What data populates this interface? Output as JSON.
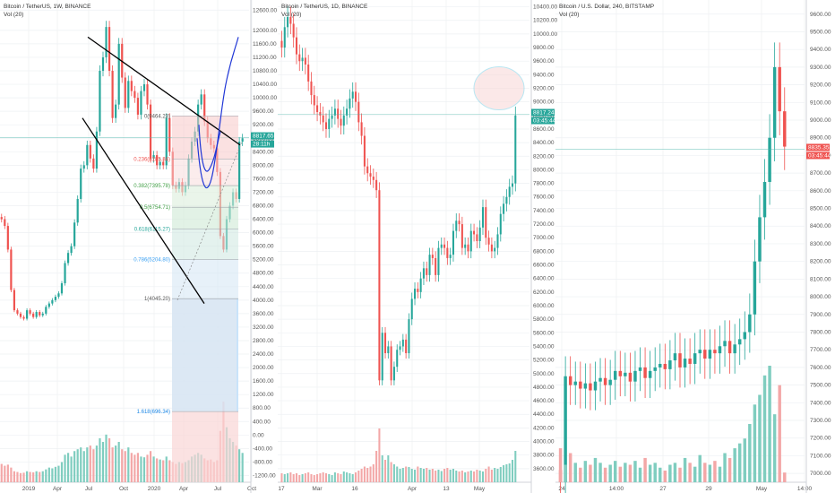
{
  "colors": {
    "up": "#26a69a",
    "down": "#ef5350",
    "upvol": "#7fcdbf",
    "downvol": "#f3a7a7",
    "grid": "#eef0f3",
    "axis": "#d0d3da"
  },
  "panels": [
    {
      "title": "Bitcoin / TetherUS, 1W, BINANCE",
      "vol_label": "Vol (20)",
      "y_ticks": [
        "12600.00",
        "12000.00",
        "11600.00",
        "11200.00",
        "10800.00",
        "10400.00",
        "10000.00",
        "9600.00",
        "9200.00",
        "8800.00",
        "8400.00",
        "8000.00",
        "7600.00",
        "7200.00",
        "6800.00",
        "6400.00",
        "6000.00",
        "5600.00",
        "5200.00",
        "4800.00",
        "4400.00",
        "4000.00",
        "3600.00",
        "3200.00",
        "2800.00",
        "2400.00",
        "2000.00",
        "1600.00",
        "1200.00",
        "800.00",
        "400.00",
        "0.00",
        "-400.00",
        "-800.00",
        "-1200.00"
      ],
      "x_ticks": [
        "2019",
        "Apr",
        "Jul",
        "Oct",
        "2020",
        "Apr",
        "Jul",
        "Oct"
      ],
      "price_tags": [
        "8817.65",
        "28:11h"
      ],
      "fib_labels": [
        "0(9464.23)",
        "0.236(8185.34)",
        "0.382(7395.78)",
        "0.5(6754.71)",
        "0.618(6115.27)",
        "0.786(5204.80)",
        "1(4045.20)",
        "1.618(696.34)"
      ]
    },
    {
      "title": "Bitcoin / TetherUS, 1D, BINANCE",
      "vol_label": "Vol (20)",
      "y_ticks": [
        "10400.00",
        "10200.00",
        "10000.00",
        "9800.00",
        "9600.00",
        "9400.00",
        "9200.00",
        "9000.00",
        "8800.00",
        "8600.00",
        "8400.00",
        "8200.00",
        "8000.00",
        "7800.00",
        "7600.00",
        "7400.00",
        "7200.00",
        "7000.00",
        "6800.00",
        "6600.00",
        "6400.00",
        "6200.00",
        "6000.00",
        "5800.00",
        "5600.00",
        "5400.00",
        "5200.00",
        "5000.00",
        "4800.00",
        "4600.00",
        "4400.00",
        "4200.00",
        "4000.00",
        "3800.00",
        "3600.00"
      ],
      "x_ticks": [
        "17",
        "Mar",
        "16",
        "Apr",
        "13",
        "May"
      ],
      "price_tags": [
        "8817.24",
        "03:45:44"
      ]
    },
    {
      "title": "Bitcoin / U.S. Dollar, 240, BITSTAMP",
      "vol_label": "Vol (20)",
      "y_ticks": [
        "9600.00",
        "9500.00",
        "9400.00",
        "9300.00",
        "9200.00",
        "9100.00",
        "9000.00",
        "8900.00",
        "8800.00",
        "8700.00",
        "8600.00",
        "8500.00",
        "8400.00",
        "8300.00",
        "8200.00",
        "8100.00",
        "8000.00",
        "7900.00",
        "7800.00",
        "7700.00",
        "7600.00",
        "7500.00",
        "7400.00",
        "7300.00",
        "7200.00",
        "7100.00",
        "7000.00"
      ],
      "x_ticks": [
        "24",
        "14:00",
        "27",
        "29",
        "May",
        "14:00"
      ],
      "price_tags": [
        "8835.35",
        "03:45:44"
      ]
    }
  ],
  "chart_data": [
    {
      "type": "candlestick",
      "title": "Bitcoin / TetherUS, 1W, BINANCE",
      "ylim": [
        -1400,
        12900
      ],
      "indicator": "Vol (20)",
      "fibonacci": [
        {
          "level": "0",
          "price": 9464.23
        },
        {
          "level": "0.236",
          "price": 8185.34
        },
        {
          "level": "0.382",
          "price": 7395.78
        },
        {
          "level": "0.5",
          "price": 6754.71
        },
        {
          "level": "0.618",
          "price": 6115.27
        },
        {
          "level": "0.786",
          "price": 5204.8
        },
        {
          "level": "1",
          "price": 4045.2
        },
        {
          "level": "1.618",
          "price": 696.34
        }
      ],
      "last_price": 8817.65,
      "closes": [
        6400,
        6200,
        5500,
        4300,
        3700,
        3600,
        3500,
        3450,
        3700,
        3600,
        3500,
        3650,
        3550,
        3600,
        3800,
        3900,
        4000,
        4100,
        4200,
        4500,
        5100,
        5400,
        5600,
        6300,
        7000,
        7900,
        8000,
        8600,
        8200,
        7900,
        9000,
        10800,
        11200,
        12100,
        10800,
        9400,
        9800,
        11600,
        10600,
        9700,
        10500,
        10200,
        10000,
        9500,
        10200,
        10400,
        9800,
        8200,
        8300,
        8000,
        8100,
        8000,
        9400,
        8400,
        7400,
        7300,
        7500,
        7200,
        7400,
        8200,
        8700,
        9000,
        9800,
        10100,
        9300,
        8800,
        8600,
        8500,
        7800,
        5900,
        5500,
        6400,
        6800,
        7200,
        7000,
        8700,
        8800
      ],
      "volumes": [
        50,
        45,
        48,
        40,
        30,
        28,
        25,
        26,
        30,
        28,
        27,
        30,
        28,
        30,
        35,
        40,
        38,
        42,
        45,
        55,
        75,
        80,
        70,
        85,
        90,
        95,
        85,
        95,
        100,
        90,
        100,
        120,
        110,
        130,
        120,
        95,
        100,
        110,
        90,
        85,
        95,
        80,
        75,
        80,
        70,
        68,
        75,
        85,
        70,
        65,
        62,
        60,
        70,
        60,
        55,
        50,
        55,
        52,
        55,
        60,
        70,
        75,
        80,
        75,
        65,
        60,
        62,
        55,
        60,
        140,
        220,
        150,
        120,
        110,
        100,
        90,
        80
      ]
    },
    {
      "type": "candlestick",
      "title": "Bitcoin / TetherUS, 1D, BINANCE",
      "ylim": [
        3400,
        10500
      ],
      "indicator": "Vol (20)",
      "last_price": 8817.24,
      "highlight_circle_price": 9200,
      "closes": [
        9800,
        10100,
        10250,
        10150,
        9950,
        9700,
        9600,
        9650,
        9550,
        9300,
        9100,
        8950,
        8850,
        8800,
        8700,
        8600,
        8750,
        8800,
        8900,
        8750,
        8650,
        8800,
        8900,
        9050,
        9150,
        9000,
        8700,
        8500,
        8050,
        7950,
        7900,
        7850,
        7700,
        4900,
        5600,
        5300,
        5400,
        4900,
        5100,
        5350,
        5400,
        5500,
        5300,
        5800,
        6100,
        6250,
        6200,
        6400,
        6550,
        6450,
        6750,
        6700,
        6450,
        6850,
        6900,
        6850,
        6700,
        6750,
        7100,
        7250,
        7200,
        6850,
        6900,
        6800,
        7100,
        7050,
        6950,
        7150,
        7450,
        7000,
        6900,
        6800,
        6850,
        7050,
        7350,
        7500,
        7600,
        7750,
        7800,
        8800
      ],
      "volumes": [
        20,
        18,
        20,
        22,
        18,
        20,
        16,
        18,
        20,
        22,
        18,
        16,
        18,
        20,
        22,
        20,
        18,
        16,
        22,
        20,
        18,
        24,
        22,
        20,
        18,
        22,
        26,
        30,
        35,
        32,
        35,
        40,
        70,
        120,
        60,
        50,
        60,
        45,
        40,
        35,
        30,
        32,
        35,
        34,
        30,
        28,
        35,
        32,
        30,
        32,
        28,
        30,
        26,
        28,
        25,
        30,
        32,
        28,
        30,
        26,
        24,
        26,
        22,
        24,
        26,
        24,
        28,
        26,
        24,
        30,
        35,
        28,
        32,
        30,
        34,
        38,
        40,
        42,
        50,
        70
      ]
    },
    {
      "type": "candlestick",
      "title": "Bitcoin / U.S. Dollar, 240, BITSTAMP",
      "ylim": [
        6950,
        9680
      ],
      "indicator": "Vol (20)",
      "last_price": 8835.35,
      "closes": [
        6950,
        7550,
        7500,
        7520,
        7480,
        7510,
        7470,
        7520,
        7540,
        7500,
        7530,
        7580,
        7550,
        7570,
        7520,
        7580,
        7600,
        7540,
        7580,
        7600,
        7620,
        7590,
        7640,
        7680,
        7600,
        7650,
        7620,
        7680,
        7700,
        7650,
        7700,
        7680,
        7720,
        7750,
        7680,
        7730,
        7760,
        7800,
        7900,
        8200,
        8450,
        8650,
        8900,
        9300,
        9050,
        8850
      ],
      "volumes": [
        35,
        18,
        30,
        20,
        15,
        22,
        18,
        25,
        20,
        15,
        18,
        22,
        16,
        20,
        18,
        22,
        15,
        25,
        18,
        20,
        15,
        12,
        18,
        20,
        15,
        25,
        20,
        16,
        28,
        20,
        18,
        22,
        16,
        30,
        25,
        35,
        40,
        45,
        60,
        80,
        90,
        110,
        120,
        70,
        100,
        10
      ]
    }
  ]
}
